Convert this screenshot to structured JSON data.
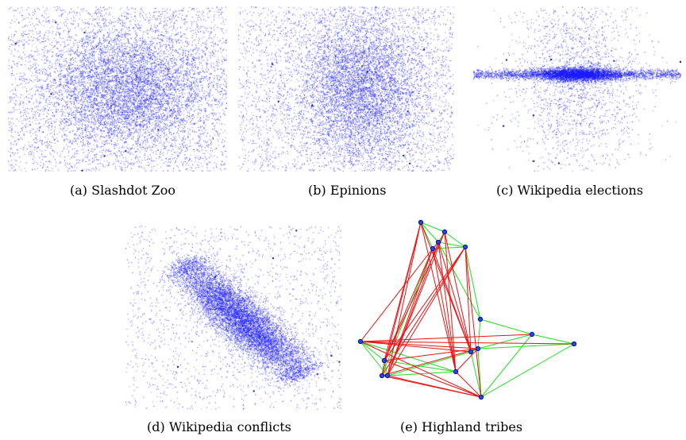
{
  "figure": {
    "panels": [
      {
        "id": "a",
        "caption": "(a) Slashdot Zoo"
      },
      {
        "id": "b",
        "caption": "(b) Epinions"
      },
      {
        "id": "c",
        "caption": "(c) Wikipedia elections"
      },
      {
        "id": "d",
        "caption": "(d) Wikipedia conflicts"
      },
      {
        "id": "e",
        "caption": "(e) Highland tribes"
      }
    ]
  },
  "colors": {
    "points": "#1a1aff",
    "node_fill": "#1e4fd6",
    "node_stroke": "#0000aa",
    "positive_edge": "#22dd22",
    "negative_edge": "#ee1111"
  },
  "highland_tribes": {
    "nodes": [
      {
        "id": "n1"
      },
      {
        "id": "n2"
      },
      {
        "id": "n3"
      },
      {
        "id": "n4"
      },
      {
        "id": "n5"
      },
      {
        "id": "n6"
      },
      {
        "id": "n7"
      },
      {
        "id": "n8"
      },
      {
        "id": "n9"
      },
      {
        "id": "n10"
      },
      {
        "id": "n11"
      },
      {
        "id": "n12"
      },
      {
        "id": "n13"
      },
      {
        "id": "n14"
      },
      {
        "id": "n15"
      },
      {
        "id": "n16"
      }
    ],
    "positive_edges": [
      [
        "n1",
        "n2"
      ],
      [
        "n1",
        "n3"
      ],
      [
        "n2",
        "n3"
      ],
      [
        "n2",
        "n5"
      ],
      [
        "n3",
        "n5"
      ],
      [
        "n1",
        "n4"
      ],
      [
        "n4",
        "n5"
      ],
      [
        "n5",
        "n6"
      ],
      [
        "n4",
        "n11"
      ],
      [
        "n6",
        "n7"
      ],
      [
        "n6",
        "n14"
      ],
      [
        "n7",
        "n14"
      ],
      [
        "n7",
        "n8"
      ],
      [
        "n8",
        "n14"
      ],
      [
        "n7",
        "n16"
      ],
      [
        "n8",
        "n16"
      ],
      [
        "n14",
        "n16"
      ],
      [
        "n14",
        "n15"
      ],
      [
        "n15",
        "n16"
      ],
      [
        "n9",
        "n10"
      ],
      [
        "n9",
        "n12"
      ],
      [
        "n9",
        "n13"
      ],
      [
        "n10",
        "n12"
      ],
      [
        "n10",
        "n13"
      ],
      [
        "n12",
        "n13"
      ],
      [
        "n11",
        "n12"
      ],
      [
        "n10",
        "n11"
      ],
      [
        "n12",
        "n15"
      ],
      [
        "n3",
        "n6"
      ]
    ],
    "negative_edges": [
      [
        "n1",
        "n10"
      ],
      [
        "n1",
        "n12"
      ],
      [
        "n1",
        "n13"
      ],
      [
        "n1",
        "n15"
      ],
      [
        "n2",
        "n10"
      ],
      [
        "n2",
        "n12"
      ],
      [
        "n2",
        "n15"
      ],
      [
        "n3",
        "n12"
      ],
      [
        "n3",
        "n13"
      ],
      [
        "n3",
        "n15"
      ],
      [
        "n4",
        "n12"
      ],
      [
        "n4",
        "n13"
      ],
      [
        "n4",
        "n15"
      ],
      [
        "n4",
        "n10"
      ],
      [
        "n5",
        "n12"
      ],
      [
        "n5",
        "n15"
      ],
      [
        "n5",
        "n10"
      ],
      [
        "n5",
        "n16"
      ],
      [
        "n9",
        "n14"
      ],
      [
        "n9",
        "n16"
      ],
      [
        "n9",
        "n15"
      ],
      [
        "n9",
        "n7"
      ],
      [
        "n9",
        "n8"
      ],
      [
        "n10",
        "n16"
      ],
      [
        "n10",
        "n14"
      ],
      [
        "n11",
        "n14"
      ],
      [
        "n11",
        "n16"
      ],
      [
        "n12",
        "n16"
      ],
      [
        "n13",
        "n16"
      ],
      [
        "n13",
        "n14"
      ],
      [
        "n1",
        "n11"
      ],
      [
        "n2",
        "n13"
      ],
      [
        "n3",
        "n4"
      ],
      [
        "n5",
        "n11"
      ],
      [
        "n4",
        "n9"
      ]
    ]
  }
}
